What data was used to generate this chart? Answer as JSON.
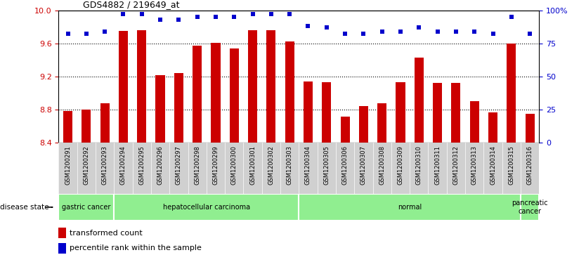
{
  "title": "GDS4882 / 219649_at",
  "samples": [
    "GSM1200291",
    "GSM1200292",
    "GSM1200293",
    "GSM1200294",
    "GSM1200295",
    "GSM1200296",
    "GSM1200297",
    "GSM1200298",
    "GSM1200299",
    "GSM1200300",
    "GSM1200301",
    "GSM1200302",
    "GSM1200303",
    "GSM1200304",
    "GSM1200305",
    "GSM1200306",
    "GSM1200307",
    "GSM1200308",
    "GSM1200309",
    "GSM1200310",
    "GSM1200311",
    "GSM1200312",
    "GSM1200313",
    "GSM1200314",
    "GSM1200315",
    "GSM1200316"
  ],
  "transformed_count": [
    8.78,
    8.8,
    8.88,
    9.75,
    9.76,
    9.22,
    9.24,
    9.57,
    9.61,
    9.54,
    9.76,
    9.76,
    9.62,
    9.14,
    9.13,
    8.72,
    8.84,
    8.88,
    9.13,
    9.43,
    9.12,
    9.12,
    8.9,
    8.77,
    9.6,
    8.75
  ],
  "percentile_rank": [
    82,
    82,
    84,
    97,
    97,
    93,
    93,
    95,
    95,
    95,
    97,
    97,
    97,
    88,
    87,
    82,
    82,
    84,
    84,
    87,
    84,
    84,
    84,
    82,
    95,
    82
  ],
  "group_boundaries": [
    {
      "label": "gastric cancer",
      "start": 0,
      "end": 3
    },
    {
      "label": "hepatocellular carcinoma",
      "start": 3,
      "end": 13
    },
    {
      "label": "normal",
      "start": 13,
      "end": 25
    },
    {
      "label": "pancreatic\ncancer",
      "start": 25,
      "end": 26
    }
  ],
  "ylim_left": [
    8.4,
    10.0
  ],
  "ylim_right": [
    0,
    100
  ],
  "yticks_left": [
    8.4,
    8.8,
    9.2,
    9.6,
    10.0
  ],
  "yticks_right": [
    0,
    25,
    50,
    75,
    100
  ],
  "ytick_labels_right": [
    "0",
    "25",
    "50",
    "75",
    "100%"
  ],
  "bar_color": "#CC0000",
  "percentile_color": "#0000CC",
  "bar_width": 0.5,
  "grid_dotted_at": [
    8.8,
    9.2,
    9.6
  ],
  "tick_label_color_left": "#CC0000",
  "tick_label_color_right": "#0000CC",
  "group_color": "#90EE90",
  "xtick_bg_color": "#D0D0D0",
  "disease_state_label": "disease state"
}
